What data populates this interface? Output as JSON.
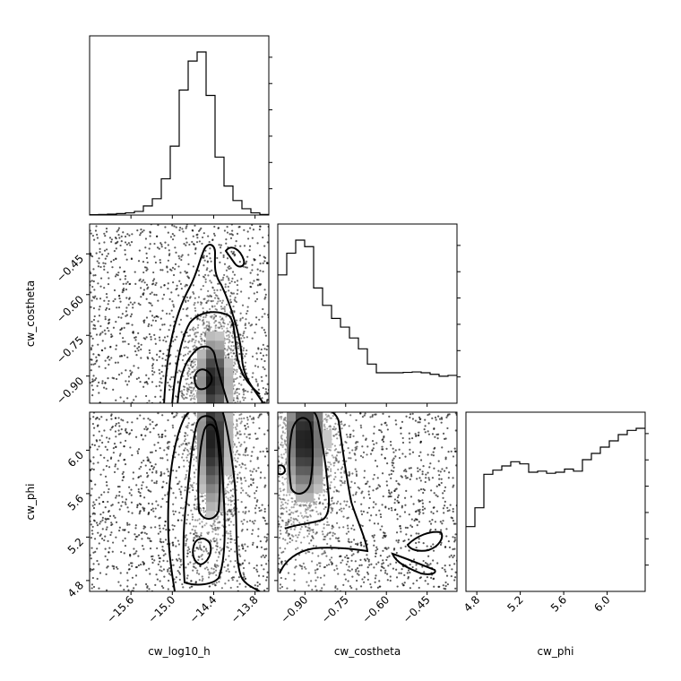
{
  "chart_data": {
    "type": "corner",
    "parameters": [
      "cw_log10_h",
      "cw_costheta",
      "cw_phi"
    ],
    "axis_labels": {
      "cw_log10_h": "cw_log10_h",
      "cw_costheta": "cw_costheta",
      "cw_phi": "cw_phi"
    },
    "ranges": {
      "cw_log10_h": [
        -16.2,
        -13.6
      ],
      "cw_costheta": [
        -1.0,
        -0.34
      ],
      "cw_phi": [
        4.7,
        6.35
      ]
    },
    "ticks": {
      "cw_log10_h": [
        "-15.6",
        "-15.0",
        "-14.4",
        "-13.8"
      ],
      "cw_costheta": [
        "-0.90",
        "-0.75",
        "-0.60",
        "-0.45"
      ],
      "cw_phi": [
        "4.8",
        "5.2",
        "5.6",
        "6.0"
      ]
    },
    "ticks_values": {
      "cw_log10_h": [
        -15.6,
        -15.0,
        -14.4,
        -13.8
      ],
      "cw_costheta": [
        -0.9,
        -0.75,
        -0.6,
        -0.45
      ],
      "cw_phi": [
        4.8,
        5.2,
        5.6,
        6.0
      ]
    },
    "histograms": {
      "cw_log10_h": {
        "bin_edges": [
          -16.2,
          -16.07,
          -15.94,
          -15.81,
          -15.68,
          -15.55,
          -15.42,
          -15.29,
          -15.16,
          -15.03,
          -14.9,
          -14.77,
          -14.64,
          -14.51,
          -14.38,
          -14.25,
          -14.12,
          -13.99,
          -13.86,
          -13.73,
          -13.6
        ],
        "counts": [
          0.002,
          0.003,
          0.005,
          0.008,
          0.012,
          0.02,
          0.05,
          0.09,
          0.2,
          0.38,
          0.69,
          0.85,
          0.9,
          0.66,
          0.32,
          0.16,
          0.08,
          0.035,
          0.012,
          0.003
        ]
      },
      "cw_costheta": {
        "bin_edges": [
          -1.0,
          -0.967,
          -0.934,
          -0.901,
          -0.868,
          -0.835,
          -0.802,
          -0.769,
          -0.736,
          -0.703,
          -0.67,
          -0.637,
          -0.604,
          -0.571,
          -0.538,
          -0.505,
          -0.472,
          -0.439,
          -0.406,
          -0.373,
          -0.34
        ],
        "counts": [
          0.59,
          0.69,
          0.75,
          0.72,
          0.53,
          0.45,
          0.39,
          0.35,
          0.3,
          0.25,
          0.18,
          0.14,
          0.14,
          0.14,
          0.142,
          0.144,
          0.14,
          0.133,
          0.124,
          0.128
        ]
      },
      "cw_phi": {
        "bin_edges": [
          4.7,
          4.7825,
          4.865,
          4.9475,
          5.03,
          5.1125,
          5.195,
          5.2775,
          5.36,
          5.4425,
          5.525,
          5.6075,
          5.69,
          5.7725,
          5.855,
          5.9375,
          6.02,
          6.1025,
          6.185,
          6.2675,
          6.35
        ],
        "counts": [
          0.31,
          0.4,
          0.56,
          0.58,
          0.6,
          0.62,
          0.61,
          0.57,
          0.575,
          0.565,
          0.57,
          0.585,
          0.575,
          0.63,
          0.66,
          0.69,
          0.72,
          0.75,
          0.77,
          0.78
        ]
      }
    },
    "joint_modes": {
      "cw_costheta|cw_log10_h": {
        "x": -14.4,
        "y": -0.92,
        "sx": 0.12,
        "sy": 0.09
      },
      "cw_phi|cw_log10_h": {
        "x": -14.4,
        "y": 6.1,
        "sx": 0.12,
        "sy": 0.35
      },
      "cw_phi|cw_costheta": {
        "x": -0.9,
        "y": 6.1,
        "sx": 0.04,
        "sy": 0.3
      }
    },
    "grid": false,
    "legend": "none"
  }
}
